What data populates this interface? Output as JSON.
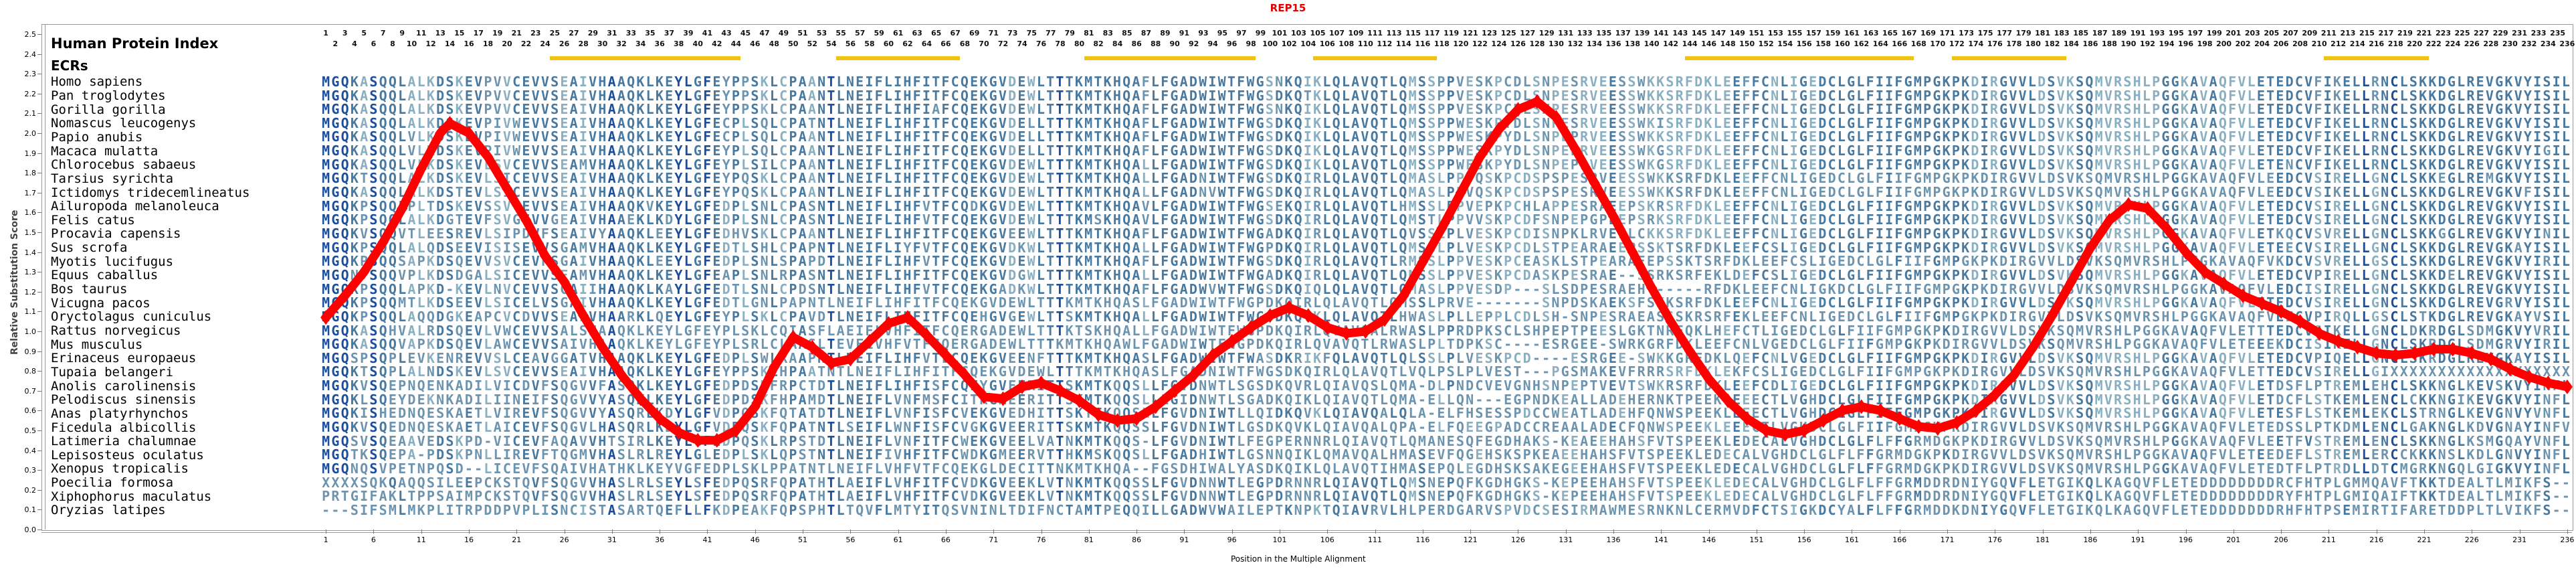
{
  "title": "REP15",
  "header": {
    "human_protein_index": "Human Protein Index",
    "ecrs_label": "ECRs"
  },
  "axes": {
    "y": {
      "label": "Relative Substitution Score",
      "min": 0.0,
      "max": 2.5,
      "step": 0.1
    },
    "x": {
      "label": "Position in the Multiple Alignment",
      "start": 1,
      "end": 236,
      "tick_step": 5,
      "header_numbering": "staggered odd row above, even row below"
    }
  },
  "colors": {
    "title": "#e00000",
    "curve": "#ff0000",
    "ecr": "#f1c40f",
    "residue_dark": "#1c4e9e",
    "residue_mid": "#49799f",
    "residue_light": "#8aafc0",
    "residue_mismatch": "#6d94ae",
    "frame": "#9a9a9a"
  },
  "ecr_regions": [
    [
      25,
      44
    ],
    [
      55,
      67
    ],
    [
      81,
      98
    ],
    [
      105,
      117
    ],
    [
      144,
      167
    ],
    [
      172,
      183
    ],
    [
      211,
      221
    ]
  ],
  "alignment": {
    "species": [
      {
        "name": "Homo sapiens",
        "sequence": "MGQKASQQLALKDSKEVPVVCEVVSEAIVHAAQKLKEYLGFEYPPSKLCPAANTLNEIFLIHFITFCQEKGVDEWLTTTKMTKHQAFLFGADWIWTFWGSNKQIKLQLAVQTLQMSSPPVESKPCDLSNPESRVEESSWKKSRFDKLEEFFCNLIGEDCLGLFIIFGMPGKPKDIRGVVLDSVKSQMVRSHLPGGKAVAQFVLETEDCVFIKELLRNCLSKKDGLREVGKVYISIL"
      },
      {
        "name": "Pan troglodytes",
        "sequence": "MGQKASQQLALKDSKEVPVVCEVVSEAIVHAAQKLKEYLGFEYPPSKLCPAANTLNEIFLIHFITFCQEKGVDEWLTTTKMTKHQAFLFGADWIWTFWGSDKQTKLQLAVQTLQMSSPPVESKPCDLSNPESRVEESSWKKSRFDKLEEFFCNLIGEDCLGLFIIFGMPGKPKDIRGVVLDSVKSQMVRSHLPGGKAVAQFVLETEDCVFIKELLRNCLSKKDGLREVGKVYISIL"
      },
      {
        "name": "Gorilla gorilla",
        "sequence": "MGQKASQQLALKDSKEVPVVCEVVSEAIVHAAQKLKEYLGFEYPPSKLCPAANTLNEIFLIHFIAFCQEKGVDEWLTTTKMTKHQAFLFGADWIWTFWGSNKQIKLQLAVQTLQMSSPPVESKPCDLSNPESRVEESSWKKSRFDKLEEFFCNLIGEDCLGLFIIFGMPGKPKDIRGVVLDSVKSQMVRSHLPGGKAVAQFVLETEDCVFIKELLRNCLSKKDGLREVGKVYISIL"
      },
      {
        "name": "Nomascus leucogenys",
        "sequence": "MGQKASQQLALKDSKEVPIVWEVVSEAIVHAAQKLKEYLGFECPLSQLCPATNTLNEIFLIHFITFCQEKGVDELLTTTKMTKHQAFLFGADWIWTFWGSDKQIKLQLAVQTLQMSSPPWESKPYDLSNPESRVEESSWKISRFDKLEEFFCNLIGEDCLGLFIIFGMPGKPKDIRGVVLDSVKSQMVRSHLPGGKAVAQFVLETEDCVFIKELLRNCLSKKDGLREVGKVYISIL"
      },
      {
        "name": "Papio anubis",
        "sequence": "MGQKASQQLVLKDSKEVPIVWEVVSEAIVHAAQKLKEYLGFECPLSQLCPAANTLNEIFLIHFITFCQEKGVDELLTTTKMTKHQAFLFGADWIWTFWGSDKQIKLQLAVQTLQMSSPPWESKPYDLSNPEPRVEESSWKKSRFDKLEEFFCNLIGEDCLGLFIIFGMPGKPKDIRGVVLDSVKSQMVRSHLPGGKAVAQFVLETEDCVFIKELLRNCLSKKDGLREVGKVYISIL"
      },
      {
        "name": "Macaca mulatta",
        "sequence": "MGQKASQQLVLKDSKEVPIVWEVVSEAIVHAAQKLKEYLGFEYPLSQLCPAANTLNEIFLIHFITFCQEKGVDELLTTTKMTKHQAFLFGADWIWTFWGSDKQIKLQLAVQTLQMSSPPWESKPYDLSNPEPRVEESSWKGSRFDKLEEFFCNLIGEDCLGLFIIFGMPGKPKDIRGVVLDSVKSQMVRSHLPGGKAVAQFVLETEDCVFIKELLRNCLSKKDGLREVGKVYIGIL"
      },
      {
        "name": "Chlorocebus sabaeus",
        "sequence": "MGQKASQQLVLKDSKEVLSVCEVVSEAMVHAAQKLKEYLGFEYPLSILCPAANTLNEIFLIHFITFCQEKGVDEWLTTTKMTKHQALLFGADWIWTFWGSDKQIKLQLAVQTLQMSSPPWESKPYDLSNPEPRVEESSWKGSRFDKLEEFFCNLIGEDCLGLFIIFGMPGKPKDIRGVVLDSVKSQMVRSHLPGGKAVAQFVLETENCVFIKELLRNCLSKKDGLREVGKVYISIL"
      },
      {
        "name": "Tarsius syrichta",
        "sequence": "MGQKTSQQLALKDSKEVLSICEVVSEAIVHAAQKLKEYLGFEYPQSKLCPAANTLNEIFLIHFITFCQEKGVDEWLTTTKMTKHQALLFGADNIWTFWGSDKQIRLQLAVQTLQMASLPPVQSKPCDSPSPESRVEESSWKKSRFDKLEEFFCNLIGEDCLGLFIIFGMPGKPKDIRGVVLDSVKSQMVRSHLPGGKAVAQFVLETEDCVSIRELLGNCLSKKEGLREMGKVYISIL"
      },
      {
        "name": "Ictidomys tridecemlineatus",
        "sequence": "MGQKASQQLALKDSTEVLSICEVVSEAIVHAAQKLKEYLGFEYPQSKLCPAANTLNEIFLIHFITFCQEKGVDEWLTTTKMTKHQALLFGADNVWTFWGSDKQIRLQLAVQTLQMASLPPVQSKPCDSPSPESRVEESSWKKSRFDKLEEFFCNLIGEDCLGLFIIFGMPGKPKDIRGVVLDSVKSQMVRSHLPGGKAVAQFVLETEDCVSIKELLGNCLSKKDGLREVGKVFISIL"
      },
      {
        "name": "Ailuropoda melanoleuca",
        "sequence": "MGQKPSQQLPLTDSKEVSSVCEVVSEAIVHAAQKVKEYLGFEDPLSNLCPASNTLNEIFLIHFVTFCQDKGVDEWLTTTKMTKHQAVLFGADWIWTFWGSEKQIRLQLAVQTLHMSSLPPVEPKPCHLAPPESRAEEPSKRSRFDKLEEFFCNLIGEDCLGLFIIFGMPGKPKDIRGVVLDSVKSQMVRSHLPGGKAVAQFVLETEDCVSIRELLGNCLSKKDGLREVGKVYISIL"
      },
      {
        "name": "Felis catus",
        "sequence": "MGQKPSQQLALKDGTEVFSVGEVVGEAIVHAAEKLKDYLGFEDPLSNLCPASNTLNEIFLIHFVTFCQEKGVDEWLTTTKMSKHQAVLFGADWIWTFWGSDKQIRLQLAVQTLQMSTLPPVVSKPCDFSNPEPGPEEPSRKSRFDKLEEFFCNLIGEDCLGLFIIFGMPGKPKDIRGVVLDSVKSQMVRSHLPGGKAVAQFVLETEDCVSIRELLGNCLSKKDGLREVGKVYISIL"
      },
      {
        "name": "Procavia capensis",
        "sequence": "MGQKVSQQVTLEESREVLSIPDVFSEAIVYAAQKLEEYLGFEDHVSKLCPAANTLNEIFLIHFITFCQEKGVEEWLTTTKMTKHQAFLFGADWIWTFWGADKQIRLQLAVQTLQVSSLPLVESKPCDISNPKLRVEELCKKSRFDKLEEFFCNLIGEDCLGLFIIFGMPGKPKDIRGVVLDSVKSQMVRSHLPGGKAVAQFVLETEAKQCVSVRELLGNCLSKKGGLREVGKVYINIL"
      },
      {
        "name": "Sus scrofa",
        "sequence": "MGQKPSQQLALQDSEEVISISEVVSGAMVHAAQKLKEYLGFEDTLSHLCPAPNTLNEIFLIYFVTFCQEKGVDKWLTTTKMTKHQALLFGADWIWTFWGPDKQIRLQLAVQTLQMSSLPLVESKPCDLSTPEARAEEPSSKTSRFDKLEEFCSLIGEDCLGLFIIFGMPGKPKDIRGVVLDSVKSQMVRSHLPGGKAVAQFVLETEEECVSIRELLGNCLSKKDGLREVGKAYISIL"
      },
      {
        "name": "Myotis lucifugus",
        "sequence": "MGQKPSQQSAPKDSQEVVSVCEVFSGAIVHAAQKLEEYLGFEDPLSNLSPAPDTLNEIFLIHFVTFCQEKGVDEWLTTTKMTKHQAFLFGADWIWTFWGSDKQIRLQLAVQTLRMSSLPPVESKPCEASKLSTPEARAEEPSSKTSRFDKLEEFCSLIGEDCLGLFIIFGMPGKPKDIRGVVLDSVKSQMVRSHLPGGKAVAQFVLETEKDCVSVRELLGSCLSKKDGLREVGKVYIRIL"
      },
      {
        "name": "Equus caballus",
        "sequence": "MGQNPSQQVPLKDSDGALSICEVVSEAMVHAAQKLKEYLGFEAPLSNLRPASNTLNEIFLIHFITFCQEKGVDGWLTTTKMTKHQALLFGADWIWTFWGADKQIRLQLAVQTLQMSSLPPVESKPCDASKPESRAE--SSRKSRFEKLDEFCSLIGEDCLGLFIIFGMPGKPKDIRGVVLDSVKSQMVRSHLPGGKAVAQFVLETEDCVPIRELLGNCLSKKDELREVGKVYISIL"
      },
      {
        "name": "Bos taurus",
        "sequence": "MGQKPSQQLAPKD-KEVLNVCEVVSGAIIHAAQKLKAYLGFEDTLSNLCPDSNTLNEIFLIHFVTFCQEKGADKWLTTTKMTKHQAFLFGADWVWTFWGSDKQIQLQLAVQTLQMASLPPVESDP---SLSDPESRAEH------RFDKLEEFCNLIGKDCLGLFIIFGMPGKPKDIRGVVLDSVKSQMVRSHLPGGKAVAQFVLETEDCISIRELLGNCLSKKDGLREVGKVYISIL"
      },
      {
        "name": "Vicugna pacos",
        "sequence": "MGQKPSQQMTLKDSEEVLSICELVSGAIVHAAQKLKEYLGFEDTLGNLPAPNTLNEIFLIHFITFCQEKGVDEWLTTTKMTKHQASLFGADWIWTFWGPDKQIRLQLAVQTLQMSSLPRVE-------SNPDSKAEKSFSKKSRFDKLEEFCNLIGEDCLGLFIIFGMPGKPKDIRGVVLDSVKSQMVRSHLPGGKAVAQFVLETEDCVSIRELLGNCLSKKDGLREVGRVYISIL"
      },
      {
        "name": "Oryctolagus cuniculus",
        "sequence": "MGQKPSQQLAQQDGKEAPCVCDVVSEAIVHAARKLQEYLGFEYPLSKLCPAVDTLNEIFLIHFITFCQEHGVGEWLTTSKMTKHQALLFGADWIWTFWGSDKQVKLQLAVQTLHWASLPLLEPPLCDLSH-SNPESRAEASSSKRSRFEKLEEFCNLIGEDCLGLFIIFGMPGKPKDIRGVVLDSVKSQMVRSHLPGGKAVAQFVLETEECVPIRQLLGSCLSTKDGLREVGKAYVSIL"
      },
      {
        "name": "Rattus norvegicus",
        "sequence": "MGQKASQHVALRDSQEVLVWCEVVSALSHAAQKLKEYLGFEYPLSKLCQIASFLAEIFLVHFITFCQERGADEWLTTTKTSKHQALLFGADWIWTFWGPDKQIRLQVAVQALRWASLPPRDPKSCLSHPEPTPEESLGKTNRFQKLHEFCTLIGEDCLGLFIIFGMPGKPKDIRGVVLDSVKSQMVRSHLPGGKAVAQFVLETEDCVSIKELLGNCLDKRDGLSDMGKVYVRIL"
      },
      {
        "name": "Mus musculus",
        "sequence": "MGQKASQQVAPKDSQEVLAWCEVVSAIVHAAQKLKEYLGFEYPLSRLCLAASLTEVFLVHFVTFCQERGADEWLTTTKMTKHQAWLFGADWIWTFWGPDKQIRLQVAVQTLRWASLPLTDPKSC----ESRGEE-SWRKGRFDKLEEFCNLVGEDCLGLFIIFGMPGKPKDIRGVVLDSVKSQMVRSHLPGGKAVAQFVLETEKDCISIKELLGNCLSKRDGLSDMGRVYIRIL"
      },
      {
        "name": "Erinaceus europaeus",
        "sequence": "MGQSPSQPLEVKENREVVSLCEAVGGATVHAAQKLKEYLGFEDPLSWLRAAPNTLNEIFLIHFVTLCQEKGVEENFTTTKMTKHQASLFGADWIWTFWASDKRIKFQLAVQTLQLSSLPLVESKPCD----ESRGEE-SWKKGRFDKLQEFCNLVGEDCLGLFIIFGMPGKPKDIRGVVLDSVKSQMVRSHLPGGKAVAQFVLETEDCVPIQELLGNCLSKRDGLREVGKAYISIL"
      },
      {
        "name": "Tupaia belangeri",
        "sequence": "MGQKTSQPLALNDSKEVLSVCEVVSEAIVHAAQKLKEYLGFEYPPSKLHPAATNTLNEIFLIHFITFCQEKGVDEWLTTTKMTKHQASLFGADNIWTFWGSDKQIRLQLAVQTLVQLPSLPLVEST---PGSMAKEVFRRRSRFDKLEKFCSLIGEDCLGLFIIFGMPGKPKDIRGVVLDSVKSQMVRSHLPGGKAVAQFVLETEDCVSIRELLGIXXXXXXXXXXXXXXXXXXX"
      },
      {
        "name": "Anolis carolinensis",
        "sequence": "MGQKVSQEPNQENKADILVICDVFSQGVVFASQKLKEYLGFEDPDSKFRPCTDTLNEIFLIHFISFCQEYGVEERITTSKMTKQQSLLFGVDNWTLSGSDKQVRLQIAVQSLQMA-DLPNDCVEVGNHSNPEPTVEVTSWKRSRFDKLEEFCDLIGEDCLGLFIIFGMPGKPKDIRGVVLDSVKSQMVRSHLPGGKAVAQFVLETEDSFLPTREMLEHCLSKKNGLKEVSKVYINFL"
      },
      {
        "name": "Pelodiscus sinensis",
        "sequence": "MGQKLSQEYDEKNKADILIINEIFSQGVVYASQKLKEYLGFEDPDSKFHPAMDTLNEIFLVNFMSFCITRGMEERITTSKMTKQQSLLLGIDNWTLSGADKQIKLQIAVQTLQMA-ELLQN---EGPNDKEALLADEHERNKTPEEKLEEECTLVGHDCLGLFIIFGMPGKPKDIRGVVLDSVKSQMVRSHLPGGKAVAQFVLETEDCFLSTKEMLENCLCKKNGIKEVGKVYINFL"
      },
      {
        "name": "Anas platyrhynchos",
        "sequence": "MGQKISHEDNQESKAETLVIREVFSQGVVYASQRLKDYLGFVDPQSKFQTATDTLNEIFLVNFISFCVEKGVEDHITTSKTTKQQSLLFGVDNIWTLLQIDKQVKLQIAVQALQLA-ELFHSESSPDCCWEATLADEHFQNWSPEEKLEEECTLVGHDCLGLFIIFGMPGKPKDIRGVVLDSVKSQMVRSHLPGGKAVAQFVLETEESFLSTKEMLEKCLSTRNGLKEVGNVYVNFL"
      },
      {
        "name": "Ficedula albicollis",
        "sequence": "MGQKVSQEDNQESKAETLAICEVFSQGVLHASQRLKDYLGFVDPQSKFQPATNTLSEIFLWNFISFCVGKGVEERITTSKMTKQQSSLFGVDNIWTLGSDKQVKLQIAVQALQPA-ELFQEEGPADCCREAALADECFQNWSPEEKLEEECTLVGHDCLGLFIIFGMPGKPKDIRGVVLDSVKSQMVRSHLPGGKAVAQFVLETEDSSLPTKDMLENCLGAKNGLKDVGNAYINFV"
      },
      {
        "name": "Latimeria chalumnae",
        "sequence": "MGQSVSQEAAVEDSKPD-VICEVFAQAVVHTSIRLKEYLGFEDPQSKLRPSTDTLNEIFLVNFITFCWEKGVEELVATNKMTKQQS-LFGVDNIWTLFEGPERNNRLQIAVQTLQMANESQFEGDHAKS-KEAEEHAHSFVTSPEEKLEDECALVGHDCLGLFLFFGRMDGKPKDIRGVVLDSVKSQMVRSHLPGGKAVAQFVLETEETFVSTREMLENCLSKKNGLKSMGQAYVNFL"
      },
      {
        "name": "Lepisosteus oculatus",
        "sequence": "MGQTKSQEPA-PDSKPNLLIREVFTQGMVHASLRLREYLGLEDPLSKLQPSTNTLNEIFIVHFITFCWDKGMEERVTTHKMSKQQSLLFGADHIWTLGSNNQIKLQMAVQALHMASEVFQGEHSKSPKEAEEHAHSFVTSPEEKLEDECALVGHDCLGLFLFFGRMDGKPKDIRGVVLDSVKSQMVRSHLPGGKAVAQFVLETEDEFLSTREMLERCCKKKNSLKDLGNVYINFL"
      },
      {
        "name": "Xenopus tropicalis",
        "sequence": "MGQNQSVPETNPQSD--LICEVFSQAIVHATHKLKEYVGFEDPLSKLPPATNTLNEIFLVHFVTFCQEKGLDECITTNKMTKHQA--FGSDHIWALYASDKQIKLQLAVQTIHMASEPQLEGDHSKSAKEGEEHAHSFVTSPEEKLEDECALVGHDCLGLFLFFGRMDGKPKDIRGVVLDSVKSQMVRSHLPGGKAVAQFVLETEDTFLPTRDLLDTCMGRKNGQLGIGKVYINFL"
      },
      {
        "name": "Poecilia formosa",
        "sequence": "XXXXSQKQAQQSILEEPCKSTQVFSQGVVHASLRLSEYLSFEDPQSRFQPATHTLAEIFLVHFITFCVDKGVEEKLVTNKMTKQQSSLFGVDNNWTLEGPDRNNRLQIAVQTLQMSNEPQFKGDHGKS-KEPEEHAHSFVTSPEEKLEDECALVGHDCLGLFLFFGRMDDRDNIYGQVFLETGIKQLKAGQVFLETEDRCFHTPLGMMQAVFTKKTDEALTLMIKFS--"
      },
      {
        "name": "Xiphophorus maculatus",
        "sequence": "PRTGIFAKLTPPSAIMPCKSTQVFSQGVVHASLRLSEYLSFEDPQSRFQPATHTLAEIFLVHFITFCVDKGVEEKLVTNKMTKQQSSLFGVDNNWTLEGPDRNNRLQIAVQTLQMSNEPQFKGDHGKS-KEPEEHAHSFVTSPEEKLEDECALVGHDCLGLFLFFGRMDDRDNIYGQVFLETGIKQLKAGQVFLETEDRYFHTPLGMIQAIFTKKTDEALTLMIKFS--"
      },
      {
        "name": "Oryzias latipes",
        "sequence": "---SIFSMLMKPLITRPDDPVPLISNCISTASARTQEFLLFKDPEAKFQPSPHTLTQVFLMTYITQSVNINLTDIFNCTAMTPEQQILLGADWVWAILEPTKNPKTQIAVRVLHLPERDGARVSPVDCSESIRMAWMESRNKNLCERMVDFCTSIGKDCYALFLFFGRMDDKDNIYGQVFLETGIKQLKAGQVFLETEDRHFHTPSEMIRTIFARETDDPLTLVIKFS--"
      }
    ]
  },
  "chart_data": {
    "type": "line",
    "title": "REP15",
    "xlabel": "Position in the Multiple Alignment",
    "ylabel": "Relative Substitution Score",
    "xlim": [
      1,
      236
    ],
    "ylim": [
      0.0,
      2.5
    ],
    "grid": false,
    "legend": "none",
    "line_color": "#ff0000",
    "marker": "diamond",
    "series": [
      {
        "name": "Relative Substitution Score",
        "points": [
          [
            1,
            1.07
          ],
          [
            3,
            1.18
          ],
          [
            5,
            1.3
          ],
          [
            7,
            1.45
          ],
          [
            9,
            1.62
          ],
          [
            11,
            1.82
          ],
          [
            13,
            2.0
          ],
          [
            14,
            2.05
          ],
          [
            16,
            2.0
          ],
          [
            18,
            1.88
          ],
          [
            20,
            1.72
          ],
          [
            22,
            1.56
          ],
          [
            24,
            1.38
          ],
          [
            26,
            1.25
          ],
          [
            28,
            1.08
          ],
          [
            30,
            0.92
          ],
          [
            32,
            0.78
          ],
          [
            34,
            0.66
          ],
          [
            36,
            0.56
          ],
          [
            38,
            0.49
          ],
          [
            40,
            0.45
          ],
          [
            42,
            0.45
          ],
          [
            44,
            0.5
          ],
          [
            46,
            0.62
          ],
          [
            48,
            0.82
          ],
          [
            50,
            0.97
          ],
          [
            52,
            0.92
          ],
          [
            54,
            0.84
          ],
          [
            56,
            0.86
          ],
          [
            58,
            0.95
          ],
          [
            60,
            1.04
          ],
          [
            62,
            1.07
          ],
          [
            64,
            0.98
          ],
          [
            66,
            0.88
          ],
          [
            68,
            0.78
          ],
          [
            70,
            0.67
          ],
          [
            72,
            0.66
          ],
          [
            74,
            0.72
          ],
          [
            76,
            0.74
          ],
          [
            78,
            0.7
          ],
          [
            80,
            0.65
          ],
          [
            82,
            0.58
          ],
          [
            84,
            0.55
          ],
          [
            86,
            0.56
          ],
          [
            88,
            0.62
          ],
          [
            90,
            0.7
          ],
          [
            92,
            0.78
          ],
          [
            94,
            0.88
          ],
          [
            96,
            0.95
          ],
          [
            98,
            1.02
          ],
          [
            100,
            1.08
          ],
          [
            102,
            1.12
          ],
          [
            104,
            1.08
          ],
          [
            106,
            1.02
          ],
          [
            108,
            0.99
          ],
          [
            110,
            1.0
          ],
          [
            112,
            1.06
          ],
          [
            114,
            1.18
          ],
          [
            116,
            1.35
          ],
          [
            118,
            1.52
          ],
          [
            120,
            1.7
          ],
          [
            122,
            1.88
          ],
          [
            124,
            2.02
          ],
          [
            126,
            2.12
          ],
          [
            128,
            2.16
          ],
          [
            130,
            2.08
          ],
          [
            132,
            1.92
          ],
          [
            134,
            1.75
          ],
          [
            136,
            1.58
          ],
          [
            138,
            1.4
          ],
          [
            140,
            1.22
          ],
          [
            142,
            1.05
          ],
          [
            144,
            0.9
          ],
          [
            146,
            0.76
          ],
          [
            148,
            0.65
          ],
          [
            150,
            0.56
          ],
          [
            152,
            0.5
          ],
          [
            154,
            0.48
          ],
          [
            156,
            0.5
          ],
          [
            158,
            0.55
          ],
          [
            160,
            0.6
          ],
          [
            162,
            0.62
          ],
          [
            164,
            0.6
          ],
          [
            166,
            0.56
          ],
          [
            168,
            0.52
          ],
          [
            170,
            0.51
          ],
          [
            172,
            0.54
          ],
          [
            174,
            0.6
          ],
          [
            176,
            0.68
          ],
          [
            178,
            0.78
          ],
          [
            180,
            0.92
          ],
          [
            182,
            1.08
          ],
          [
            184,
            1.25
          ],
          [
            186,
            1.42
          ],
          [
            188,
            1.56
          ],
          [
            190,
            1.64
          ],
          [
            192,
            1.62
          ],
          [
            194,
            1.52
          ],
          [
            196,
            1.4
          ],
          [
            198,
            1.3
          ],
          [
            200,
            1.24
          ],
          [
            202,
            1.18
          ],
          [
            204,
            1.14
          ],
          [
            206,
            1.1
          ],
          [
            208,
            1.05
          ],
          [
            210,
            0.99
          ],
          [
            212,
            0.95
          ],
          [
            214,
            0.92
          ],
          [
            216,
            0.89
          ],
          [
            218,
            0.88
          ],
          [
            220,
            0.89
          ],
          [
            222,
            0.91
          ],
          [
            224,
            0.91
          ],
          [
            226,
            0.89
          ],
          [
            228,
            0.86
          ],
          [
            230,
            0.81
          ],
          [
            232,
            0.77
          ],
          [
            234,
            0.74
          ],
          [
            236,
            0.72
          ]
        ]
      }
    ]
  }
}
